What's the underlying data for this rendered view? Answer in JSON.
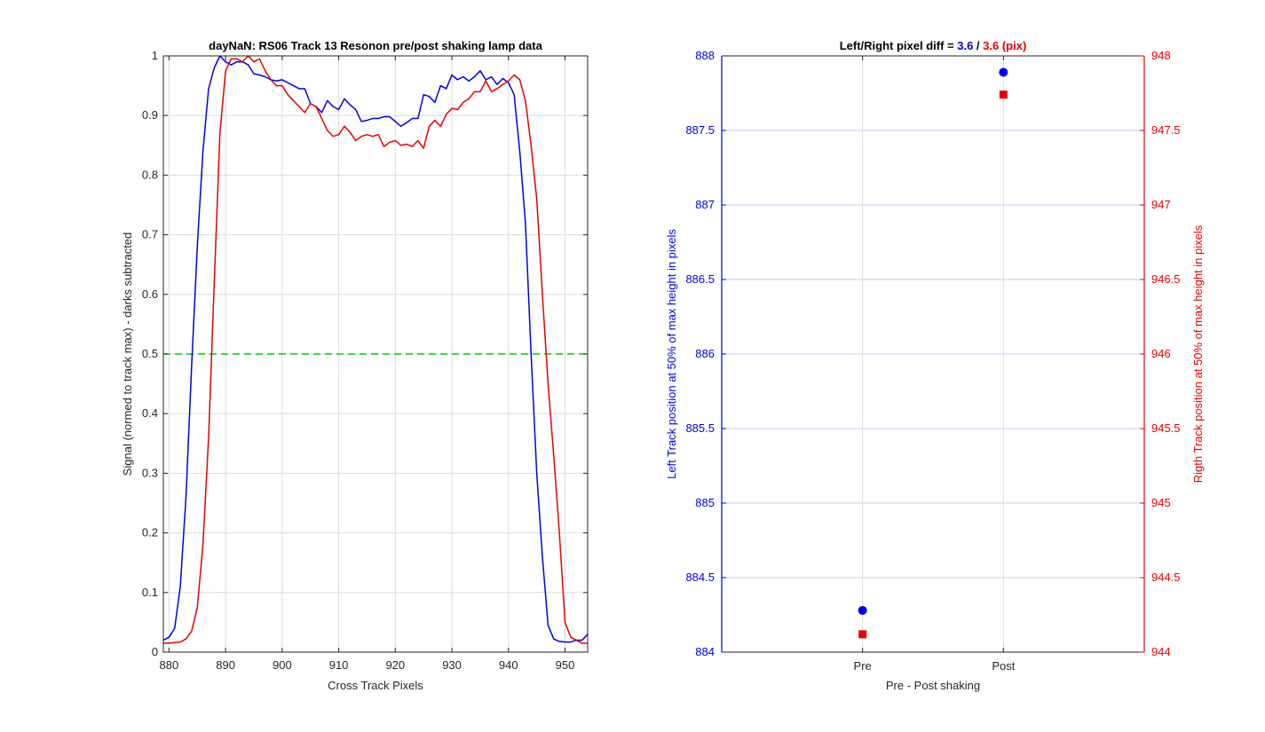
{
  "chart_data": [
    {
      "type": "line",
      "title": "dayNaN: RS06  Track 13 Resonon pre/post shaking lamp data",
      "xlabel": "Cross Track Pixels",
      "ylabel": "Signal (normed to track max) - darks subtracted",
      "xlim": [
        879,
        954
      ],
      "ylim": [
        0,
        1
      ],
      "xticks": [
        880,
        890,
        900,
        910,
        920,
        930,
        940,
        950
      ],
      "yticks": [
        0,
        0.1,
        0.2,
        0.3,
        0.4,
        0.5,
        0.6,
        0.7,
        0.8,
        0.9,
        1
      ],
      "ytick_labels": [
        "0",
        "0.1",
        "0.2",
        "0.3",
        "0.4",
        "0.5",
        "0.6",
        "0.7",
        "0.8",
        "0.9",
        "1"
      ],
      "grid": true,
      "reference_line": {
        "y": 0.5,
        "color": "#00cc00",
        "style": "dashed"
      },
      "series": [
        {
          "color": "#0000e6",
          "x": [
            879,
            880,
            881,
            882,
            883,
            884,
            885,
            886,
            887,
            888,
            889,
            890,
            891,
            892,
            893,
            894,
            895,
            896,
            897,
            898,
            899,
            900,
            901,
            902,
            903,
            904,
            905,
            906,
            907,
            908,
            909,
            910,
            911,
            912,
            913,
            914,
            915,
            916,
            917,
            918,
            919,
            920,
            921,
            922,
            923,
            924,
            925,
            926,
            927,
            928,
            929,
            930,
            931,
            932,
            933,
            934,
            935,
            936,
            937,
            938,
            939,
            940,
            941,
            942,
            943,
            944,
            945,
            946,
            947,
            948,
            949,
            950,
            951,
            952,
            953,
            954
          ],
          "y": [
            0.02,
            0.025,
            0.04,
            0.11,
            0.26,
            0.48,
            0.68,
            0.84,
            0.945,
            0.98,
            1.0,
            0.99,
            0.985,
            0.99,
            0.99,
            0.985,
            0.97,
            0.968,
            0.965,
            0.96,
            0.958,
            0.96,
            0.955,
            0.95,
            0.945,
            0.945,
            0.92,
            0.915,
            0.905,
            0.925,
            0.915,
            0.91,
            0.928,
            0.918,
            0.91,
            0.89,
            0.892,
            0.895,
            0.895,
            0.898,
            0.898,
            0.89,
            0.882,
            0.888,
            0.895,
            0.895,
            0.935,
            0.932,
            0.922,
            0.95,
            0.945,
            0.968,
            0.96,
            0.965,
            0.958,
            0.965,
            0.975,
            0.96,
            0.965,
            0.952,
            0.962,
            0.955,
            0.935,
            0.84,
            0.72,
            0.5,
            0.3,
            0.16,
            0.045,
            0.022,
            0.018,
            0.017,
            0.017,
            0.02,
            0.02,
            0.03
          ]
        },
        {
          "color": "#e60000",
          "x": [
            879,
            880,
            881,
            882,
            883,
            884,
            885,
            886,
            887,
            888,
            889,
            890,
            891,
            892,
            893,
            894,
            895,
            896,
            897,
            898,
            899,
            900,
            901,
            902,
            903,
            904,
            905,
            906,
            907,
            908,
            909,
            910,
            911,
            912,
            913,
            914,
            915,
            916,
            917,
            918,
            919,
            920,
            921,
            922,
            923,
            924,
            925,
            926,
            927,
            928,
            929,
            930,
            931,
            932,
            933,
            934,
            935,
            936,
            937,
            938,
            939,
            940,
            941,
            942,
            943,
            944,
            945,
            946,
            947,
            948,
            949,
            950,
            951,
            952,
            953,
            954
          ],
          "y": [
            0.015,
            0.015,
            0.016,
            0.017,
            0.022,
            0.035,
            0.075,
            0.18,
            0.36,
            0.62,
            0.87,
            0.975,
            0.995,
            0.995,
            0.99,
            1.0,
            0.99,
            0.995,
            0.975,
            0.96,
            0.95,
            0.95,
            0.935,
            0.925,
            0.915,
            0.905,
            0.92,
            0.915,
            0.895,
            0.875,
            0.865,
            0.868,
            0.882,
            0.872,
            0.858,
            0.865,
            0.868,
            0.865,
            0.868,
            0.848,
            0.855,
            0.858,
            0.85,
            0.852,
            0.848,
            0.858,
            0.845,
            0.882,
            0.892,
            0.882,
            0.902,
            0.912,
            0.91,
            0.922,
            0.928,
            0.94,
            0.94,
            0.958,
            0.94,
            0.945,
            0.952,
            0.958,
            0.968,
            0.96,
            0.925,
            0.85,
            0.76,
            0.6,
            0.45,
            0.33,
            0.2,
            0.05,
            0.025,
            0.02,
            0.015,
            0.015
          ]
        }
      ]
    },
    {
      "type": "scatter",
      "title_prefix": "Left/Right pixel diff = ",
      "title_left_value": "3.6",
      "title_separator": " / ",
      "title_right_value": "3.6 (pix)",
      "xlabel": "Pre - Post shaking",
      "categories": [
        "Pre",
        "Post"
      ],
      "ylabel_left": "Left Track position at 50% of max height in pixels",
      "ylabel_right": "Rigth Track position at 50% of max height in pixels",
      "ylim_left": [
        884,
        888
      ],
      "ylim_right": [
        944,
        948
      ],
      "yticks_left": [
        "884",
        "884.5",
        "885",
        "885.5",
        "886",
        "886.5",
        "887",
        "887.5",
        "888"
      ],
      "yticks_right": [
        "944",
        "944.5",
        "945",
        "945.5",
        "946",
        "946.5",
        "947",
        "947.5",
        "948"
      ],
      "left_color": "#0000e6",
      "right_color": "#e60000",
      "series": [
        {
          "axis": "left",
          "marker": "circle",
          "color": "#0000e6",
          "values": [
            884.28,
            887.89
          ]
        },
        {
          "axis": "right",
          "marker": "square",
          "color": "#e60000",
          "values": [
            944.12,
            947.74
          ]
        }
      ]
    }
  ]
}
